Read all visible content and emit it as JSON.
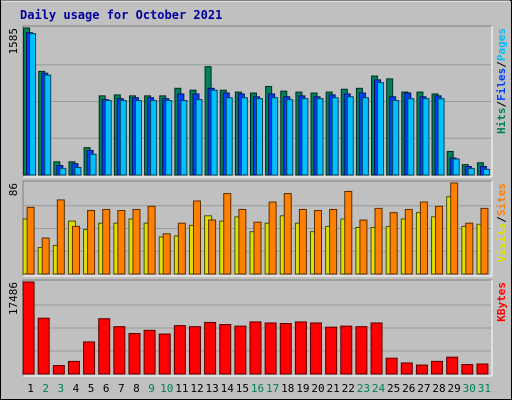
{
  "chart_data": [
    {
      "type": "bar",
      "title": "Daily usage for October 2021",
      "categories": [
        "1",
        "2",
        "3",
        "4",
        "5",
        "6",
        "7",
        "8",
        "9",
        "10",
        "11",
        "12",
        "13",
        "14",
        "15",
        "16",
        "17",
        "18",
        "19",
        "20",
        "21",
        "22",
        "23",
        "24",
        "25",
        "26",
        "27",
        "28",
        "29",
        "30",
        "31"
      ],
      "y_max_label": "1585",
      "legend": [
        {
          "text": "Hits",
          "color": "#00805c"
        },
        {
          "text": "/",
          "color": "#000000"
        },
        {
          "text": "Files",
          "color": "#0040ff"
        },
        {
          "text": "/",
          "color": "#000000"
        },
        {
          "text": "Pages",
          "color": "#00c0ff"
        }
      ],
      "series": [
        {
          "name": "Hits",
          "color": "#00805c",
          "values": [
            1560,
            1100,
            140,
            140,
            290,
            840,
            850,
            840,
            840,
            840,
            920,
            900,
            1150,
            900,
            880,
            870,
            940,
            890,
            880,
            870,
            880,
            910,
            920,
            1050,
            1020,
            880,
            880,
            860,
            250,
            110,
            130
          ]
        },
        {
          "name": "Files",
          "color": "#0040ff",
          "values": [
            1510,
            1080,
            100,
            120,
            260,
            800,
            810,
            820,
            820,
            810,
            860,
            860,
            920,
            870,
            860,
            830,
            860,
            830,
            840,
            830,
            850,
            860,
            870,
            1010,
            830,
            870,
            830,
            840,
            180,
            90,
            90
          ]
        },
        {
          "name": "Pages",
          "color": "#00c0ff",
          "values": [
            1500,
            1060,
            70,
            80,
            220,
            790,
            790,
            790,
            790,
            790,
            790,
            800,
            900,
            820,
            820,
            810,
            820,
            800,
            810,
            810,
            820,
            830,
            820,
            980,
            790,
            810,
            810,
            810,
            170,
            70,
            60
          ]
        }
      ]
    },
    {
      "type": "bar",
      "y_max_label": "86",
      "legend": [
        {
          "text": "Visits",
          "color": "#e0e000"
        },
        {
          "text": "/",
          "color": "#000000"
        },
        {
          "text": "Sites",
          "color": "#ff8000"
        }
      ],
      "series": [
        {
          "name": "Visits",
          "color": "#e0e000",
          "values": [
            52,
            25,
            27,
            50,
            42,
            48,
            48,
            52,
            48,
            35,
            36,
            46,
            55,
            50,
            54,
            40,
            48,
            55,
            48,
            40,
            45,
            52,
            44,
            44,
            45,
            52,
            58,
            54,
            73,
            45,
            47
          ]
        },
        {
          "name": "Sites",
          "color": "#ff8000",
          "values": [
            63,
            34,
            70,
            45,
            60,
            61,
            60,
            61,
            64,
            38,
            48,
            69,
            51,
            76,
            61,
            49,
            68,
            76,
            61,
            60,
            61,
            78,
            51,
            62,
            58,
            61,
            68,
            64,
            86,
            48,
            62
          ]
        }
      ]
    },
    {
      "type": "bar",
      "y_max_label": "17486",
      "legend": [
        {
          "text": "KBytes",
          "color": "#ff0000"
        }
      ],
      "series": [
        {
          "name": "KBytes",
          "color": "#ff0000",
          "values": [
            17486,
            10600,
            1600,
            2400,
            6100,
            10500,
            9000,
            7700,
            8300,
            7600,
            9200,
            9000,
            9800,
            9400,
            9100,
            9900,
            9700,
            9600,
            9900,
            9700,
            8900,
            9100,
            9000,
            9700,
            3000,
            2100,
            1700,
            2400,
            3200,
            1800,
            1900
          ]
        }
      ]
    }
  ],
  "day_label_colors": {
    "weekday": "#000000",
    "weekend": "#00805c"
  },
  "weekend_days": [
    "2",
    "3",
    "9",
    "10",
    "16",
    "17",
    "23",
    "24",
    "30",
    "31"
  ]
}
